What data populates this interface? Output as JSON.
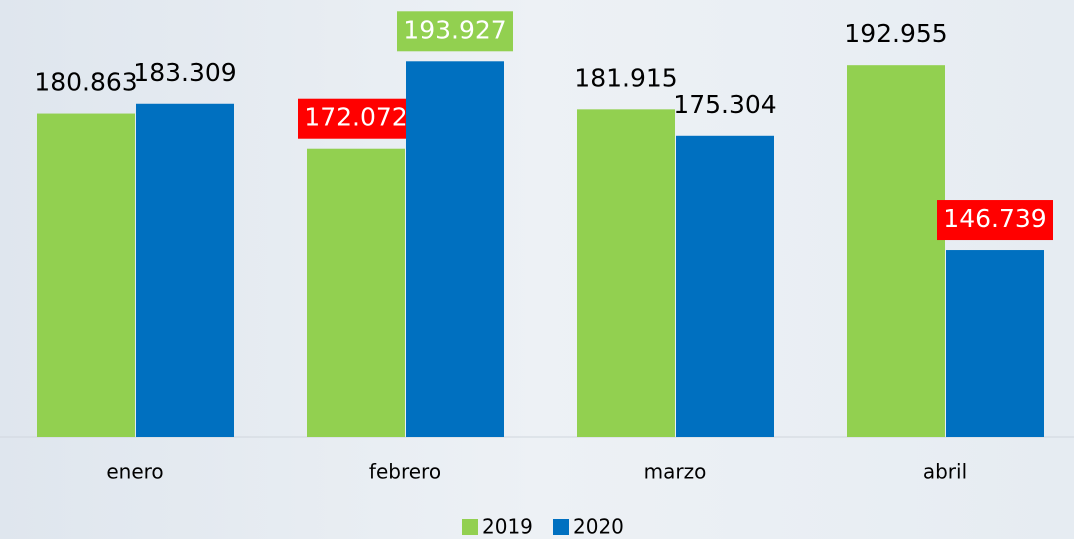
{
  "chart_data": {
    "type": "bar",
    "categories": [
      "enero",
      "febrero",
      "marzo",
      "abril"
    ],
    "series": [
      {
        "name": "2019",
        "color": "#92d050",
        "values": [
          180863,
          172072,
          181915,
          192955
        ],
        "value_labels": [
          "180.863",
          "172.072",
          "181.915",
          "192.955"
        ],
        "label_backgrounds": [
          null,
          "#ff0000",
          null,
          null
        ]
      },
      {
        "name": "2020",
        "color": "#0070c0",
        "values": [
          183309,
          193927,
          175304,
          146739
        ],
        "value_labels": [
          "183.309",
          "193.927",
          "175.304",
          "146.739"
        ],
        "label_backgrounds": [
          null,
          "#92d050",
          null,
          "#ff0000"
        ]
      }
    ],
    "ylim": [
      100000,
      200000
    ],
    "legend": "bottom"
  }
}
